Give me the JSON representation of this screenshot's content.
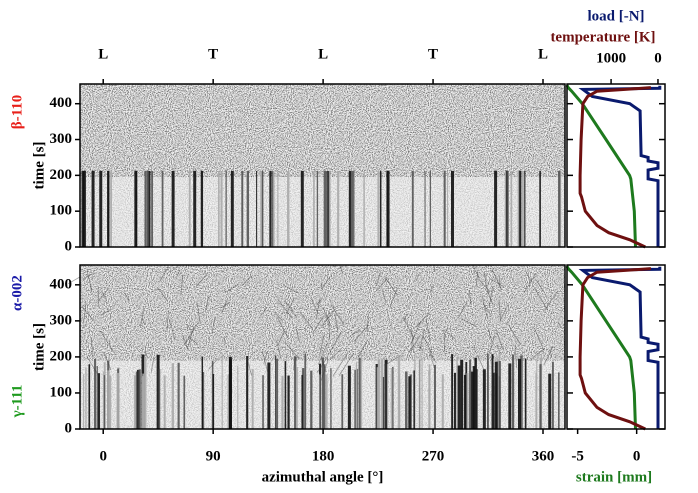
{
  "chart_data": [
    {
      "type": "image",
      "panel_label": "β-110",
      "panel_label_color": "#e8201a",
      "ylabel": "time [s]",
      "xlim": [
        -19,
        378
      ],
      "ylim": [
        0,
        455
      ],
      "yticks": [
        0,
        100,
        200,
        300,
        400
      ],
      "top_ticks": [
        {
          "value": 0,
          "label": "L"
        },
        {
          "value": 90,
          "label": "T"
        },
        {
          "value": 180,
          "label": "L"
        },
        {
          "value": 270,
          "label": "T"
        },
        {
          "value": 360,
          "label": "L"
        }
      ]
    },
    {
      "type": "image",
      "panel_label": "α-002",
      "panel_label_color": "#1a1aa8",
      "panel_label_2": "γ-111",
      "panel_label_2_color": "#1e9a1e",
      "ylabel": "time [s]",
      "xlim": [
        -19,
        378
      ],
      "ylim": [
        0,
        455
      ],
      "yticks": [
        0,
        100,
        200,
        300,
        400
      ],
      "xticks": [
        0,
        90,
        180,
        270,
        360
      ],
      "xlabel": "azimuthal angle [°]"
    },
    {
      "type": "line",
      "ylim": [
        0,
        455
      ],
      "yticks": [
        0,
        100,
        200,
        300,
        400
      ],
      "xlim": [
        -5.9,
        2.4
      ],
      "xticks": [
        -5,
        0
      ],
      "xlabel": "strain [mm]",
      "xlabel_color": "#1e7a1e",
      "x2lim": [
        1940,
        -150
      ],
      "x2ticks": [
        1000,
        0
      ],
      "series": [
        {
          "name": "strain [mm]",
          "color": "#1e7a1e",
          "time": [
            0,
            100,
            190,
            200,
            300,
            400,
            435,
            445,
            452
          ],
          "values": [
            -0.1,
            -0.2,
            -0.5,
            -0.6,
            -2.6,
            -4.6,
            -5.5,
            -5.8,
            -5.9
          ]
        },
        {
          "name": "load [-N]",
          "color": "#0a1a6e",
          "axis": "x2",
          "time": [
            0,
            185,
            190,
            215,
            220,
            235,
            240,
            250,
            255,
            380,
            400,
            420,
            440,
            443,
            450
          ],
          "values": [
            0,
            0,
            210,
            210,
            0,
            0,
            210,
            210,
            360,
            380,
            600,
            1400,
            1600,
            -40,
            -40
          ]
        },
        {
          "name": "temperature [K]",
          "color": "#6e1010",
          "axis": "x2",
          "time": [
            0,
            20,
            40,
            60,
            100,
            140,
            150,
            200,
            300,
            400,
            420,
            435,
            440,
            445
          ],
          "values": [
            270,
            600,
            1050,
            1300,
            1550,
            1630,
            1660,
            1660,
            1640,
            1600,
            1500,
            1300,
            700,
            150
          ]
        }
      ]
    }
  ]
}
